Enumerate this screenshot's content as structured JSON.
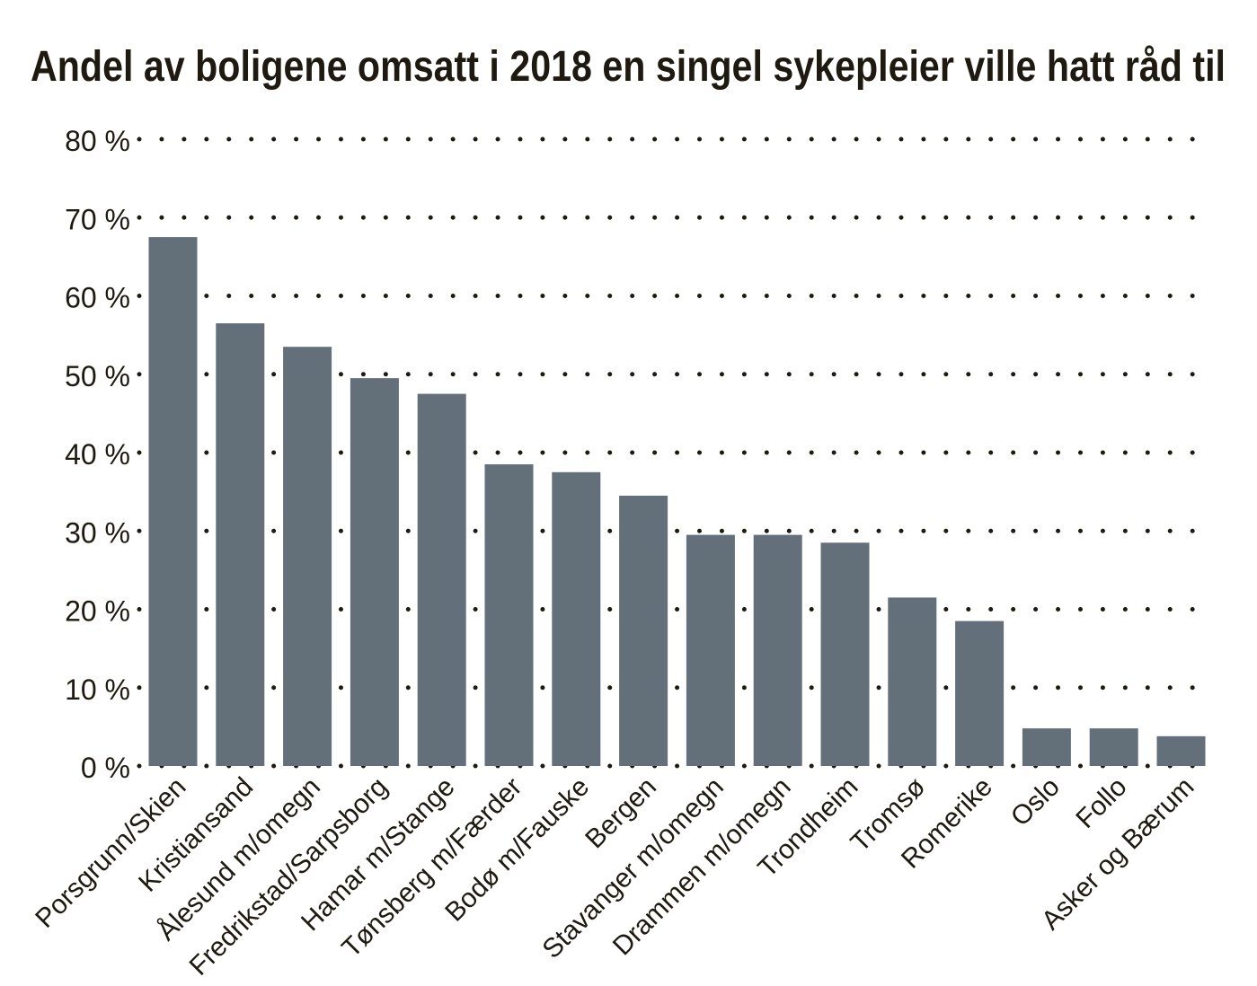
{
  "chart_data": {
    "type": "bar",
    "title": "Andel av boligene omsatt i 2018 en singel sykepleier ville hatt råd til",
    "xlabel": "",
    "ylabel": "",
    "ylim": [
      0,
      80
    ],
    "yticks": [
      0,
      10,
      20,
      30,
      40,
      50,
      60,
      70,
      80
    ],
    "ytick_labels": [
      "0 %",
      "10 %",
      "20 %",
      "30 %",
      "40 %",
      "50 %",
      "60 %",
      "70 %",
      "80 %"
    ],
    "grid": "dotted-horizontal",
    "categories": [
      "Porsgrunn/Skien",
      "Kristiansand",
      "Ålesund m/omegn",
      "Fredrikstad/Sarpsborg",
      "Hamar m/Stange",
      "Tønsberg m/Færder",
      "Bodø m/Fauske",
      "Bergen",
      "Stavanger m/omegn",
      "Drammen m/omegn",
      "Trondheim",
      "Tromsø",
      "Romerike",
      "Oslo",
      "Follo",
      "Asker og Bærum"
    ],
    "values": [
      67.5,
      56.5,
      53.5,
      49.5,
      47.5,
      38.5,
      37.5,
      34.5,
      29.5,
      29.5,
      28.5,
      21.5,
      18.5,
      4.8,
      4.8,
      3.8
    ],
    "colors": {
      "bar": "#637079",
      "grid": "#1f1a10",
      "text": "#1f1a10"
    }
  }
}
